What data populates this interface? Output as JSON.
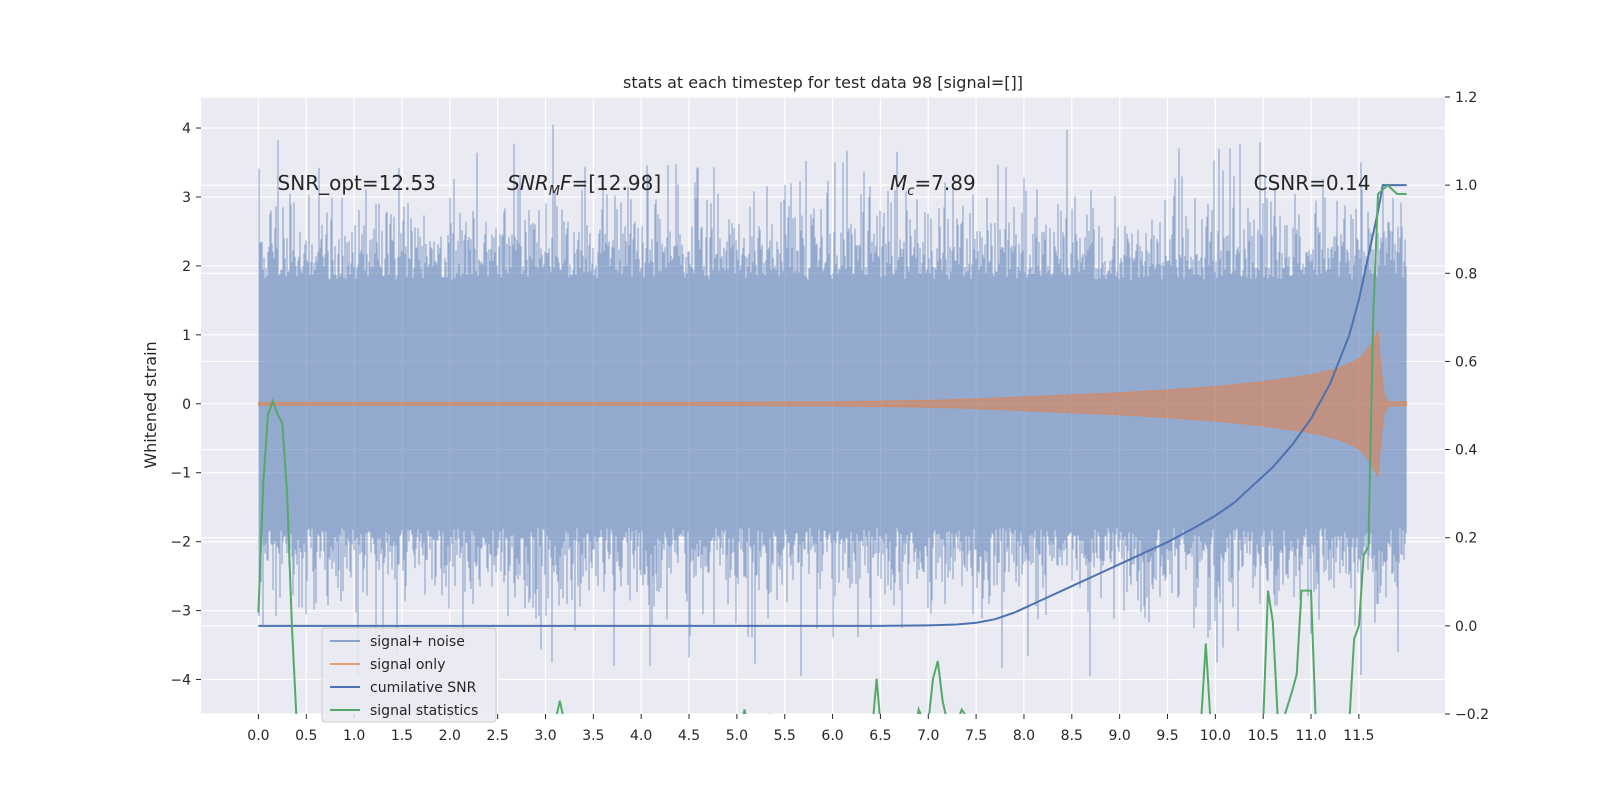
{
  "chart_data": {
    "type": "line",
    "title": "stats at each timestep for test data 98 [signal=[]]",
    "xlabel": "",
    "ylabel": "Whitened strain",
    "y2label": "",
    "xlim": [
      -0.6,
      12.4
    ],
    "ylim": [
      -4.5,
      4.45
    ],
    "y2lim": [
      -0.2,
      1.2
    ],
    "xticks": [
      0.0,
      0.5,
      1.0,
      1.5,
      2.0,
      2.5,
      3.0,
      3.5,
      4.0,
      4.5,
      5.0,
      5.5,
      6.0,
      6.5,
      7.0,
      7.5,
      8.0,
      8.5,
      9.0,
      9.5,
      10.0,
      10.5,
      11.0,
      11.5
    ],
    "xtick_labels": [
      "0.0",
      "0.5",
      "1.0",
      "1.5",
      "2.0",
      "2.5",
      "3.0",
      "3.5",
      "4.0",
      "4.5",
      "5.0",
      "5.5",
      "6.0",
      "6.5",
      "7.0",
      "7.5",
      "8.0",
      "8.5",
      "9.0",
      "9.5",
      "10.0",
      "10.5",
      "11.0",
      "11.5"
    ],
    "yticks": [
      -4,
      -3,
      -2,
      -1,
      0,
      1,
      2,
      3,
      4
    ],
    "ytick_labels": [
      "−4",
      "−3",
      "−2",
      "−1",
      "0",
      "1",
      "2",
      "3",
      "4"
    ],
    "y2ticks": [
      -0.2,
      0.0,
      0.2,
      0.4,
      0.6,
      0.8,
      1.0,
      1.2
    ],
    "y2tick_labels": [
      "−0.2",
      "0.0",
      "0.2",
      "0.4",
      "0.6",
      "0.8",
      "1.0",
      "1.2"
    ],
    "grid": true,
    "legend_position": "lower-left",
    "annotations": [
      {
        "text": "SNR_opt=12.53",
        "x": 0.2,
        "y": 3.2
      },
      {
        "text": "SNR_MF=[12.98]",
        "x": 2.6,
        "y": 3.2
      },
      {
        "text": "M_c=7.89",
        "x": 6.6,
        "y": 3.2
      },
      {
        "text": "CSNR=0.14",
        "x": 10.4,
        "y": 3.2
      }
    ],
    "series": [
      {
        "name": "signal+ noise",
        "color": "#4c72b0",
        "opacity": 0.5,
        "axis": "left",
        "description_values": {
          "x_range": [
            0.0,
            12.0
          ],
          "typical_amplitude": 1.8,
          "peak_max": 4.05,
          "peak_min": -3.95
        }
      },
      {
        "name": "signal only",
        "color": "#dd8452",
        "opacity": 0.6,
        "axis": "left",
        "envelope": {
          "x": [
            0.0,
            4.0,
            6.0,
            7.0,
            7.5,
            8.0,
            8.5,
            9.0,
            9.5,
            10.0,
            10.5,
            11.0,
            11.3,
            11.5,
            11.6,
            11.7,
            11.75,
            11.8,
            12.0
          ],
          "amp": [
            0.02,
            0.02,
            0.03,
            0.05,
            0.07,
            0.1,
            0.13,
            0.16,
            0.2,
            0.25,
            0.32,
            0.42,
            0.52,
            0.65,
            0.8,
            1.05,
            0.2,
            0.03,
            0.03
          ]
        }
      },
      {
        "name": "cumilative SNR",
        "color": "#4c72b0",
        "opacity": 1.0,
        "axis": "right",
        "x": [
          0.0,
          1.0,
          2.0,
          3.0,
          4.0,
          5.0,
          6.0,
          6.5,
          7.0,
          7.3,
          7.5,
          7.7,
          7.9,
          8.0,
          8.2,
          8.5,
          8.8,
          9.0,
          9.3,
          9.5,
          9.8,
          10.0,
          10.2,
          10.4,
          10.6,
          10.8,
          11.0,
          11.2,
          11.4,
          11.5,
          11.6,
          11.7,
          11.75,
          12.0
        ],
        "values": [
          0.0,
          0.0,
          0.0,
          0.0,
          0.0,
          0.0,
          0.0,
          0.0,
          0.001,
          0.003,
          0.007,
          0.015,
          0.03,
          0.04,
          0.06,
          0.09,
          0.12,
          0.14,
          0.17,
          0.19,
          0.225,
          0.25,
          0.28,
          0.32,
          0.36,
          0.41,
          0.47,
          0.55,
          0.66,
          0.74,
          0.84,
          0.94,
          1.0,
          1.0
        ]
      },
      {
        "name": "signal statistics",
        "color": "#55a868",
        "opacity": 1.0,
        "axis": "right",
        "x": [
          0.0,
          0.05,
          0.1,
          0.15,
          0.2,
          0.25,
          0.3,
          0.35,
          0.4,
          3.1,
          3.15,
          3.2,
          5.05,
          5.08,
          5.11,
          5.33,
          5.35,
          5.37,
          6.42,
          6.46,
          6.5,
          6.54,
          6.88,
          6.9,
          6.92,
          6.95,
          7.0,
          7.05,
          7.1,
          7.15,
          7.2,
          7.3,
          7.35,
          7.38,
          7.41,
          9.85,
          9.9,
          9.95,
          10.0,
          10.5,
          10.55,
          10.6,
          10.65,
          10.7,
          10.8,
          10.85,
          10.9,
          10.95,
          11.0,
          11.05,
          11.1,
          11.15,
          11.4,
          11.45,
          11.5,
          11.55,
          11.6,
          11.65,
          11.7,
          11.75,
          11.8,
          11.85,
          11.9,
          11.95,
          12.0
        ],
        "values": [
          0.03,
          0.32,
          0.48,
          0.51,
          0.48,
          0.46,
          0.3,
          0.0,
          -0.22,
          -0.22,
          -0.17,
          -0.22,
          -0.22,
          -0.19,
          -0.22,
          -0.22,
          -0.2,
          -0.22,
          -0.22,
          -0.12,
          -0.22,
          -0.22,
          -0.22,
          -0.19,
          -0.2,
          -0.22,
          -0.22,
          -0.12,
          -0.08,
          -0.17,
          -0.22,
          -0.22,
          -0.19,
          -0.2,
          -0.22,
          -0.22,
          -0.04,
          -0.22,
          -0.22,
          -0.22,
          0.08,
          0.01,
          -0.2,
          -0.22,
          -0.15,
          -0.11,
          0.08,
          0.08,
          0.08,
          -0.22,
          -0.22,
          -0.22,
          -0.22,
          -0.03,
          0.0,
          0.16,
          0.18,
          0.7,
          0.98,
          0.99,
          1.0,
          0.99,
          0.98,
          0.98,
          0.98
        ]
      }
    ]
  }
}
